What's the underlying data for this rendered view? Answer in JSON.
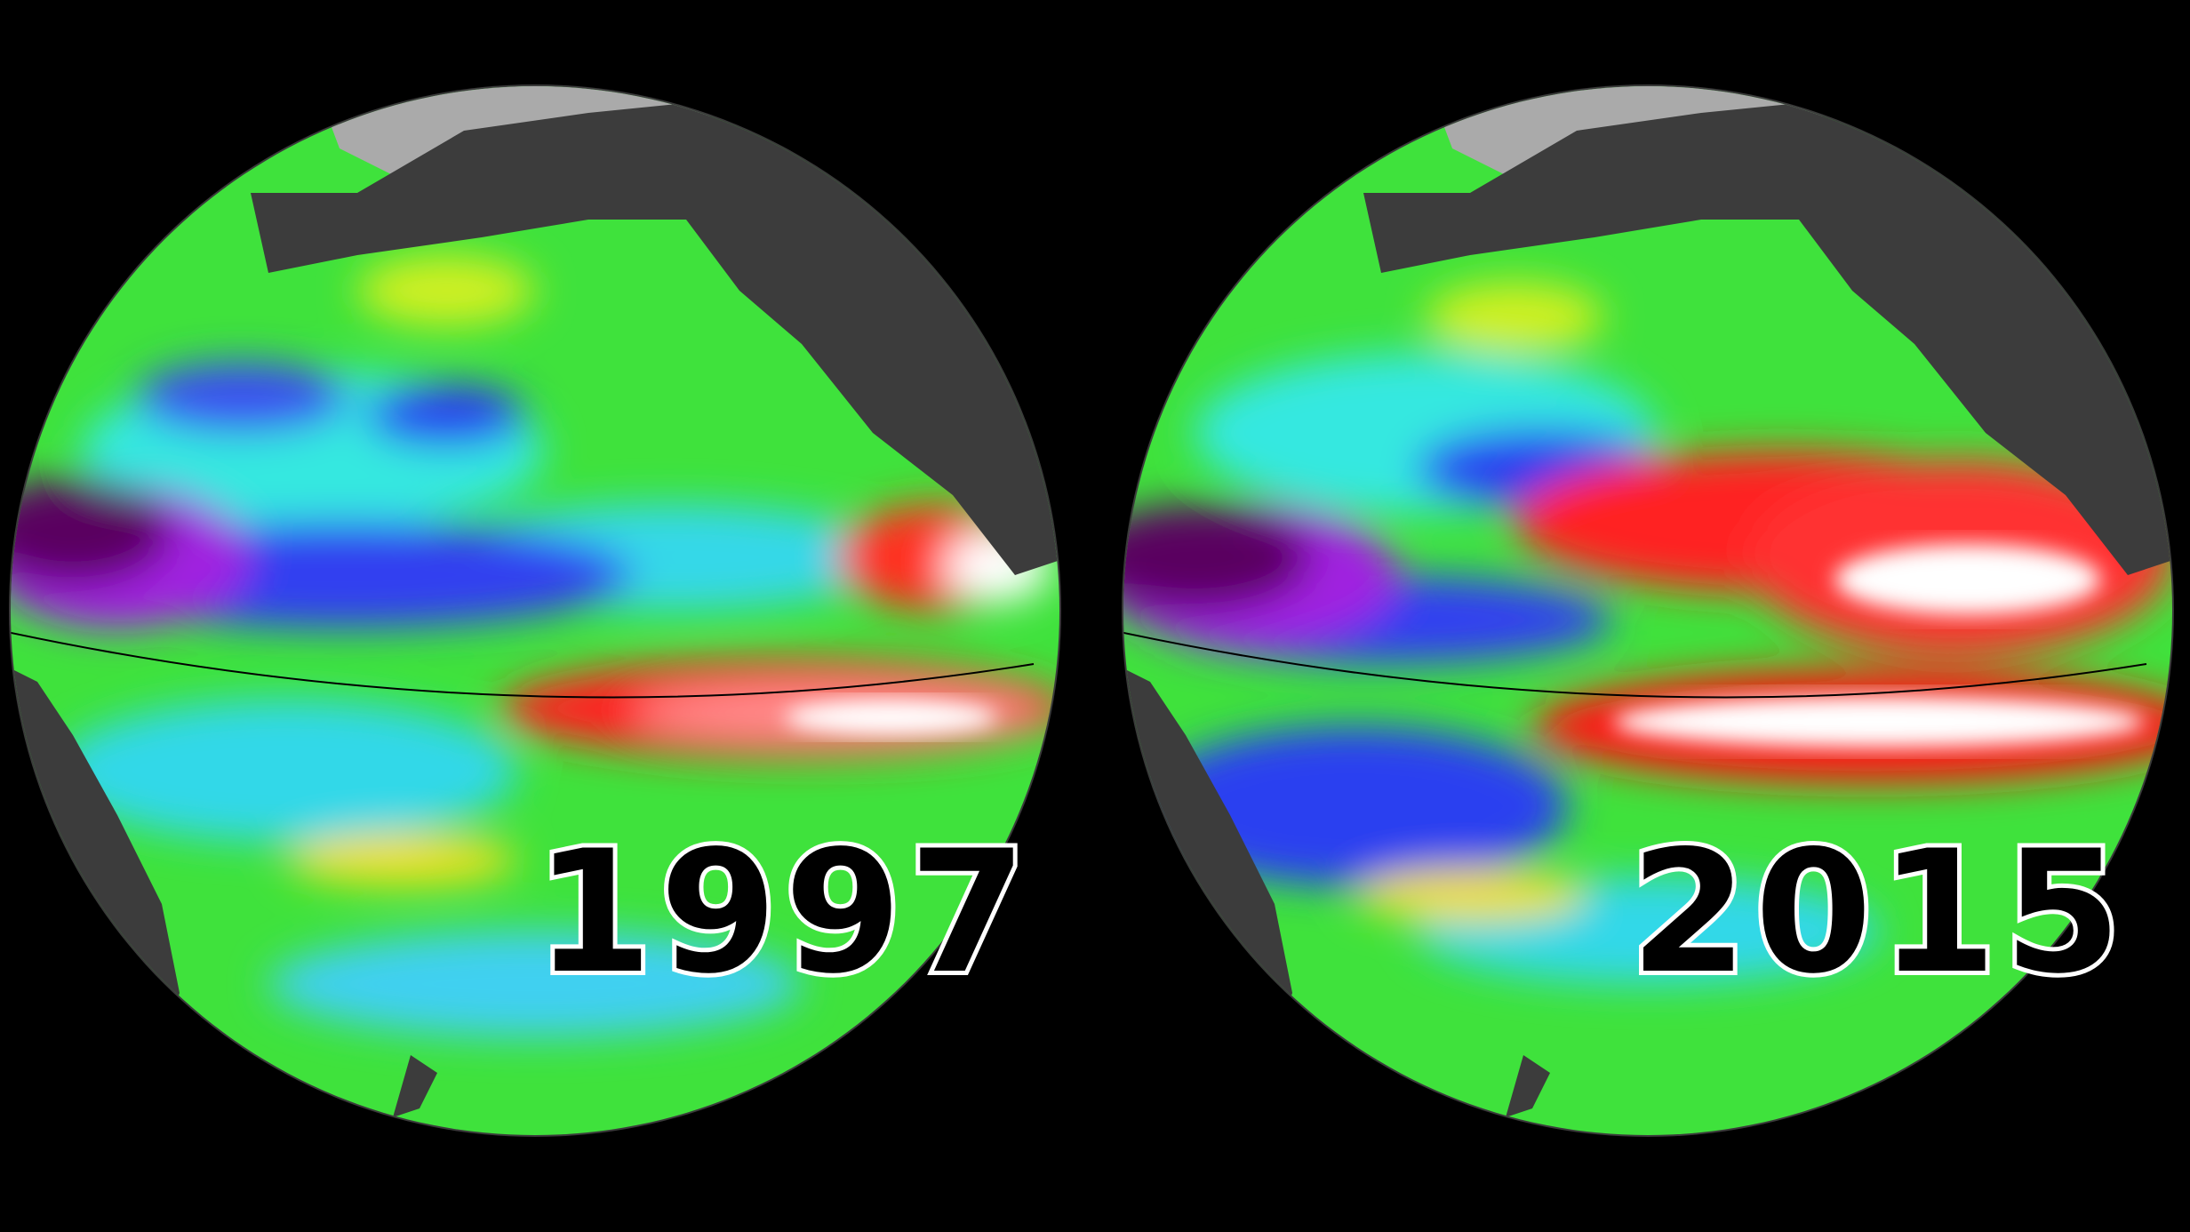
{
  "panels": [
    {
      "label": "1997"
    },
    {
      "label": "2015"
    }
  ]
}
